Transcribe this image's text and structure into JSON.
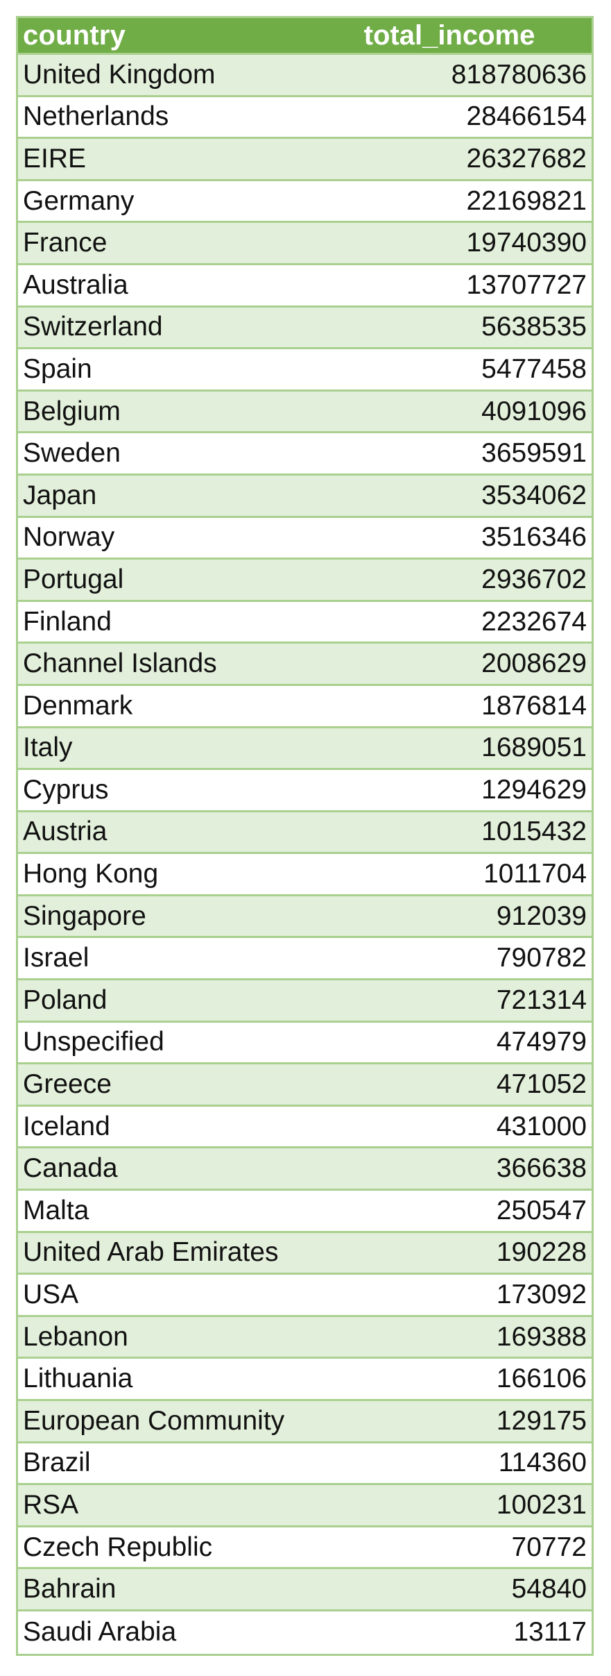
{
  "table": {
    "columns": [
      "country",
      "total_income"
    ],
    "rows": [
      [
        "United Kingdom",
        "818780636"
      ],
      [
        "Netherlands",
        "28466154"
      ],
      [
        "EIRE",
        "26327682"
      ],
      [
        "Germany",
        "22169821"
      ],
      [
        "France",
        "19740390"
      ],
      [
        "Australia",
        "13707727"
      ],
      [
        "Switzerland",
        "5638535"
      ],
      [
        "Spain",
        "5477458"
      ],
      [
        "Belgium",
        "4091096"
      ],
      [
        "Sweden",
        "3659591"
      ],
      [
        "Japan",
        "3534062"
      ],
      [
        "Norway",
        "3516346"
      ],
      [
        "Portugal",
        "2936702"
      ],
      [
        "Finland",
        "2232674"
      ],
      [
        "Channel Islands",
        "2008629"
      ],
      [
        "Denmark",
        "1876814"
      ],
      [
        "Italy",
        "1689051"
      ],
      [
        "Cyprus",
        "1294629"
      ],
      [
        "Austria",
        "1015432"
      ],
      [
        "Hong Kong",
        "1011704"
      ],
      [
        "Singapore",
        "912039"
      ],
      [
        "Israel",
        "790782"
      ],
      [
        "Poland",
        "721314"
      ],
      [
        "Unspecified",
        "474979"
      ],
      [
        "Greece",
        "471052"
      ],
      [
        "Iceland",
        "431000"
      ],
      [
        "Canada",
        "366638"
      ],
      [
        "Malta",
        "250547"
      ],
      [
        "United Arab Emirates",
        "190228"
      ],
      [
        "USA",
        "173092"
      ],
      [
        "Lebanon",
        "169388"
      ],
      [
        "Lithuania",
        "166106"
      ],
      [
        "European Community",
        "129175"
      ],
      [
        "Brazil",
        "114360"
      ],
      [
        "RSA",
        "100231"
      ],
      [
        "Czech Republic",
        "70772"
      ],
      [
        "Bahrain",
        "54840"
      ],
      [
        "Saudi Arabia",
        "13117"
      ]
    ]
  },
  "colors": {
    "header_background": "#70ad47",
    "header_text": "#ffffff",
    "band_light_green": "#e2efda",
    "band_white": "#ffffff",
    "border": "#a9d08e"
  }
}
